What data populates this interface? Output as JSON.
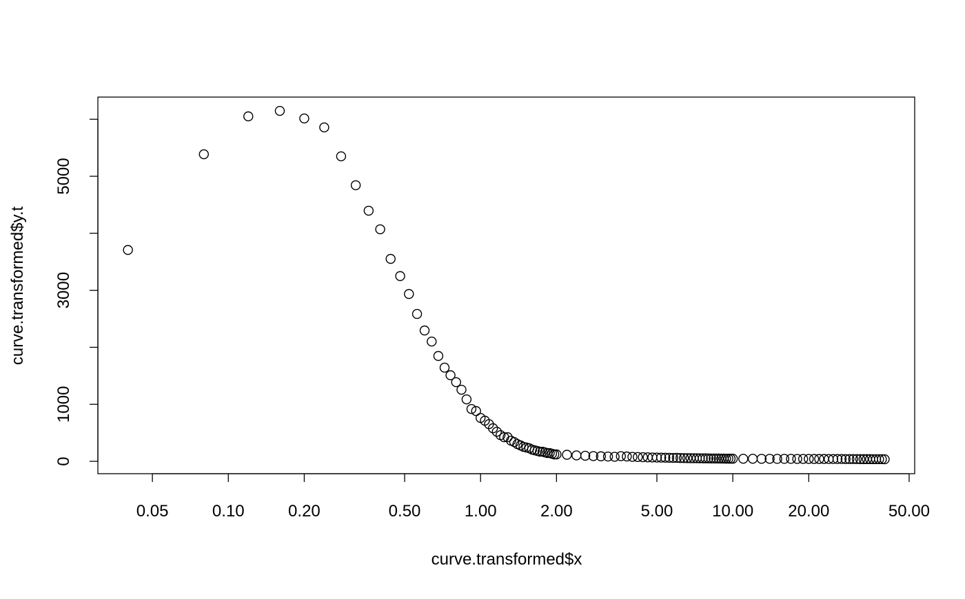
{
  "chart_data": {
    "type": "scatter",
    "x_label": "curve.transformed$x",
    "y_label": "curve.transformed$y.t",
    "x_log": true,
    "color": "#000000",
    "xlim": [
      0.0304,
      52.6
    ],
    "ylim": [
      -217,
      6389
    ],
    "xticks": [
      0.05,
      {
        "value": 0.1,
        "label": "0.10"
      },
      {
        "value": 0.2,
        "label": "0.20"
      },
      {
        "value": 0.5,
        "label": "0.50"
      },
      {
        "value": 1,
        "label": "1.00"
      },
      {
        "value": 2,
        "label": "2.00"
      },
      {
        "value": 5,
        "label": "5.00"
      },
      {
        "value": 10,
        "label": "10.00"
      },
      {
        "value": 20,
        "label": "20.00"
      },
      {
        "value": 50,
        "label": "50.00"
      }
    ],
    "yticks": [
      0,
      1000,
      3000,
      5000
    ],
    "yminor": [
      2000,
      4000,
      6000
    ],
    "x": [
      0.04,
      0.08,
      0.12,
      0.16,
      0.2,
      0.24,
      0.28,
      0.32,
      0.36,
      0.4,
      0.44,
      0.48,
      0.52,
      0.56,
      0.6,
      0.64,
      0.68,
      0.72,
      0.76,
      0.8,
      0.84,
      0.88,
      0.92,
      0.96,
      1,
      1.04,
      1.08,
      1.12,
      1.16,
      1.2,
      1.24,
      1.28,
      1.32,
      1.36,
      1.4,
      1.44,
      1.48,
      1.52,
      1.56,
      1.6,
      1.64,
      1.68,
      1.72,
      1.76,
      1.8,
      1.84,
      1.88,
      1.92,
      1.96,
      2,
      2.2,
      2.4,
      2.6,
      2.8,
      3,
      3.2,
      3.4,
      3.6,
      3.8,
      4,
      4.2,
      4.4,
      4.6,
      4.8,
      5,
      5.2,
      5.4,
      5.6,
      5.8,
      6,
      6.2,
      6.4,
      6.6,
      6.8,
      7,
      7.2,
      7.4,
      7.6,
      7.8,
      8,
      8.2,
      8.4,
      8.6,
      8.8,
      9,
      9.2,
      9.4,
      9.6,
      9.8,
      10,
      11,
      12,
      13,
      14,
      15,
      16,
      17,
      18,
      19,
      20,
      21,
      22,
      23,
      24,
      25,
      26,
      27,
      28,
      29,
      30,
      31,
      32,
      33,
      34,
      35,
      36,
      37,
      38,
      39,
      40
    ],
    "values": [
      3708,
      5386,
      6051,
      6147,
      6014,
      5857,
      5350,
      4843,
      4396,
      4070,
      3551,
      3249,
      2935,
      2585,
      2295,
      2101,
      1848,
      1643,
      1510,
      1389,
      1256,
      1087,
      918,
      882,
      761,
      713,
      652,
      580,
      519,
      459,
      423,
      423,
      362,
      338,
      302,
      278,
      254,
      242,
      229,
      205,
      193,
      181,
      169,
      169,
      157,
      145,
      145,
      133,
      121,
      121,
      115,
      104,
      98,
      92,
      88,
      84,
      80,
      90,
      85,
      78,
      75,
      72,
      70,
      68,
      66,
      65,
      63,
      62,
      60,
      61,
      58,
      57,
      56,
      55,
      54,
      54,
      53,
      52,
      52,
      51,
      50,
      50,
      49,
      49,
      48,
      48,
      47,
      47,
      46,
      46,
      45,
      45,
      44,
      44,
      43,
      43,
      43,
      42,
      42,
      42,
      41,
      41,
      41,
      40,
      40,
      40,
      40,
      39,
      39,
      39,
      39,
      38,
      38,
      38,
      38,
      37,
      37,
      37,
      37,
      36
    ]
  }
}
